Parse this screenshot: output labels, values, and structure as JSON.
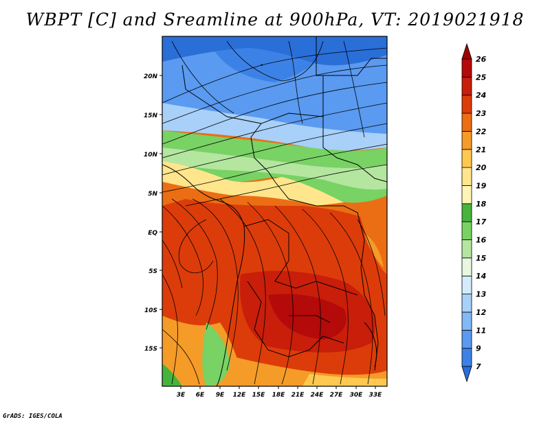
{
  "title": "WBPT [C] and Sreamline at 900hPa, VT: 2019021918",
  "credit": "GrADS: IGES/COLA",
  "map": {
    "lat_labels": [
      "20N",
      "15N",
      "10N",
      "5N",
      "EQ",
      "5S",
      "10S",
      "15S"
    ],
    "lon_labels": [
      "3E",
      "6E",
      "9E",
      "12E",
      "15E",
      "18E",
      "21E",
      "24E",
      "27E",
      "30E",
      "33E"
    ]
  },
  "colorbar": {
    "labels": [
      "7",
      "9",
      "11",
      "12",
      "13",
      "14",
      "15",
      "16",
      "17",
      "18",
      "19",
      "20",
      "21",
      "22",
      "23",
      "24",
      "25",
      "26"
    ],
    "colors": [
      "#2a6ed8",
      "#3c82e6",
      "#5a9af0",
      "#82b8f5",
      "#a8d0f8",
      "#d2ecfb",
      "#e8f8e0",
      "#b4e6a0",
      "#78d264",
      "#46b43c",
      "#fff5b4",
      "#ffe68c",
      "#ffc850",
      "#f59b28",
      "#eb6e14",
      "#dc3c0a",
      "#c81e0a",
      "#b40a0a",
      "#a00000"
    ]
  }
}
